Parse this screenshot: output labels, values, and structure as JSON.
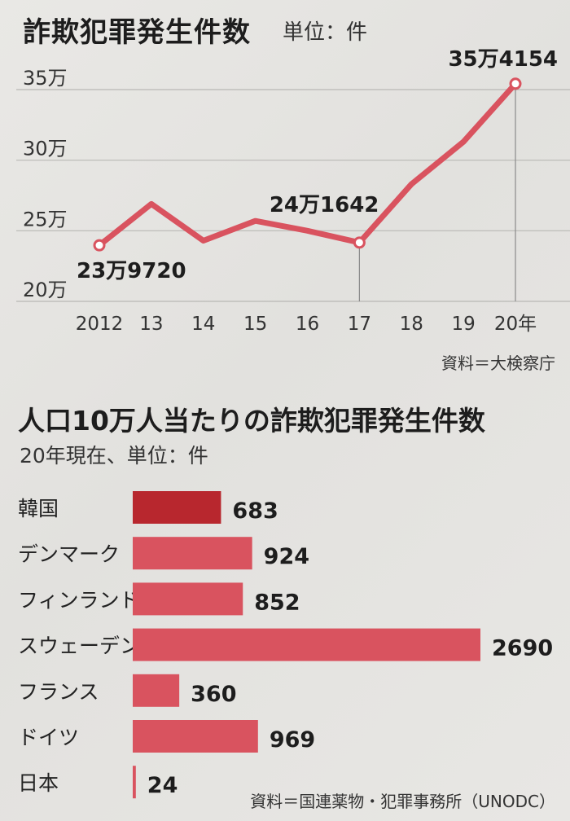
{
  "chart_data": [
    {
      "type": "line",
      "title": "詐欺犯罪発生件数",
      "unit": "単位：件",
      "x": [
        "2012",
        "13",
        "14",
        "15",
        "16",
        "17",
        "18",
        "19",
        "20年"
      ],
      "values": [
        239720,
        269000,
        243000,
        257000,
        250000,
        241642,
        283000,
        313000,
        354154
      ],
      "ytick_labels": [
        "20万",
        "25万",
        "30万",
        "35万"
      ],
      "ytick_values": [
        200000,
        250000,
        300000,
        350000
      ],
      "ylim": [
        200000,
        350000
      ],
      "point_labels": [
        {
          "index": 0,
          "text": "23万9720"
        },
        {
          "index": 5,
          "text": "24万1642"
        },
        {
          "index": 8,
          "text": "35万4154"
        }
      ],
      "source": "資料＝大検察庁",
      "color": "#d9535f",
      "grid": true
    },
    {
      "type": "bar",
      "title": "人口10万人当たりの詐欺犯罪発生件数",
      "subtitle": "20年現在、単位：件",
      "categories": [
        "韓国",
        "デンマーク",
        "フィンランド",
        "スウェーデン",
        "フランス",
        "ドイツ",
        "日本"
      ],
      "values": [
        683,
        924,
        852,
        2690,
        360,
        969,
        24
      ],
      "colors": [
        "#b8272e",
        "#d9535f",
        "#d9535f",
        "#d9535f",
        "#d9535f",
        "#d9535f",
        "#d9535f"
      ],
      "source": "資料＝国連薬物・犯罪事務所（UNODC）"
    }
  ]
}
